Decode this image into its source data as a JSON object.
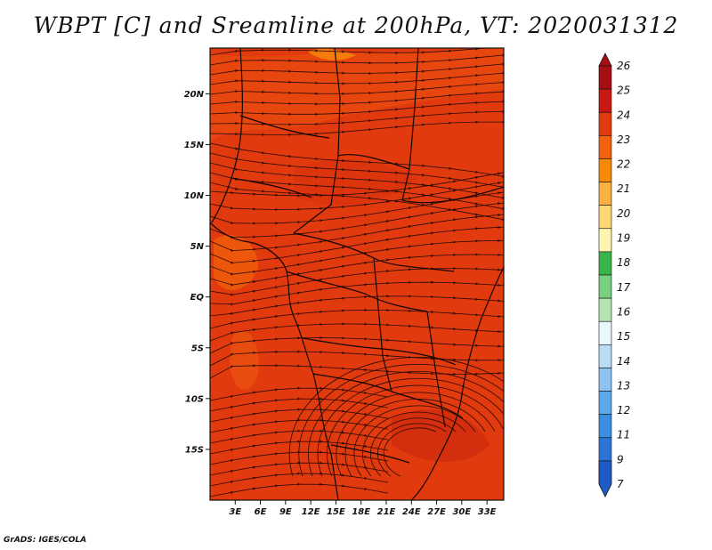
{
  "title": "WBPT [C] and Sreamline at 200hPa, VT: 2020031312",
  "credit": "GrADS: IGES/COLA",
  "map": {
    "lat_ticks": [
      "20N",
      "15N",
      "10N",
      "5N",
      "EQ",
      "5S",
      "10S",
      "15S"
    ],
    "lon_ticks": [
      "3E",
      "6E",
      "9E",
      "12E",
      "15E",
      "18E",
      "21E",
      "24E",
      "27E",
      "30E",
      "33E"
    ],
    "lat_range": [
      -20,
      24.5
    ],
    "lon_range": [
      0,
      35
    ],
    "background_color": "#e03a0e"
  },
  "colorbar": {
    "levels": [
      "26",
      "25",
      "24",
      "23",
      "22",
      "21",
      "20",
      "19",
      "18",
      "17",
      "16",
      "15",
      "14",
      "13",
      "12",
      "11",
      "9",
      "7"
    ],
    "colors": [
      "#a50f15",
      "#c8180f",
      "#e03a0e",
      "#f2610c",
      "#f88a0a",
      "#fbb040",
      "#fdd873",
      "#fff5b0",
      "#3ab54a",
      "#78d17f",
      "#b5e6b0",
      "#e8f7f9",
      "#b8dcf5",
      "#8cc3f0",
      "#5ea8ea",
      "#3d8ee0",
      "#2b73d6",
      "#1f5bc8"
    ]
  }
}
